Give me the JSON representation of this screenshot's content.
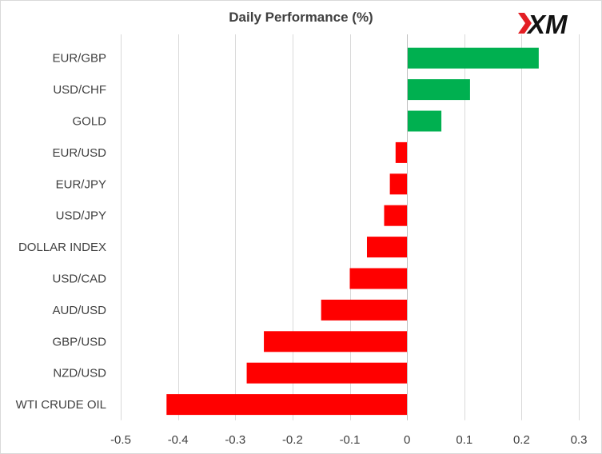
{
  "chart_data": {
    "type": "bar",
    "orientation": "horizontal",
    "title": "Daily Performance  (%)",
    "xlabel": "",
    "ylabel": "",
    "categories": [
      "EUR/GBP",
      "USD/CHF",
      "GOLD",
      "EUR/USD",
      "EUR/JPY",
      "USD/JPY",
      "DOLLAR INDEX",
      "USD/CAD",
      "AUD/USD",
      "GBP/USD",
      "NZD/USD",
      "WTI CRUDE OIL"
    ],
    "values": [
      0.23,
      0.11,
      0.06,
      -0.02,
      -0.03,
      -0.04,
      -0.07,
      -0.1,
      -0.15,
      -0.25,
      -0.28,
      -0.42
    ],
    "xlim": [
      -0.5,
      0.3
    ],
    "xticks": [
      -0.5,
      -0.4,
      -0.3,
      -0.2,
      -0.1,
      0,
      0.1,
      0.2,
      0.3
    ],
    "xtick_labels": [
      "-0.5",
      "-0.4",
      "-0.3",
      "-0.2",
      "-0.1",
      "0",
      "0.1",
      "0.2",
      "0.3"
    ],
    "grid": "vertical",
    "legend": "none",
    "colors": {
      "positive": "#00b050",
      "negative": "#ff0000",
      "grid": "#d9d9d9",
      "axis": "#bfbfbf",
      "text": "#404040"
    }
  },
  "logo": {
    "text": "XM",
    "mark_color": "#e31e24",
    "text_color": "#111111"
  }
}
